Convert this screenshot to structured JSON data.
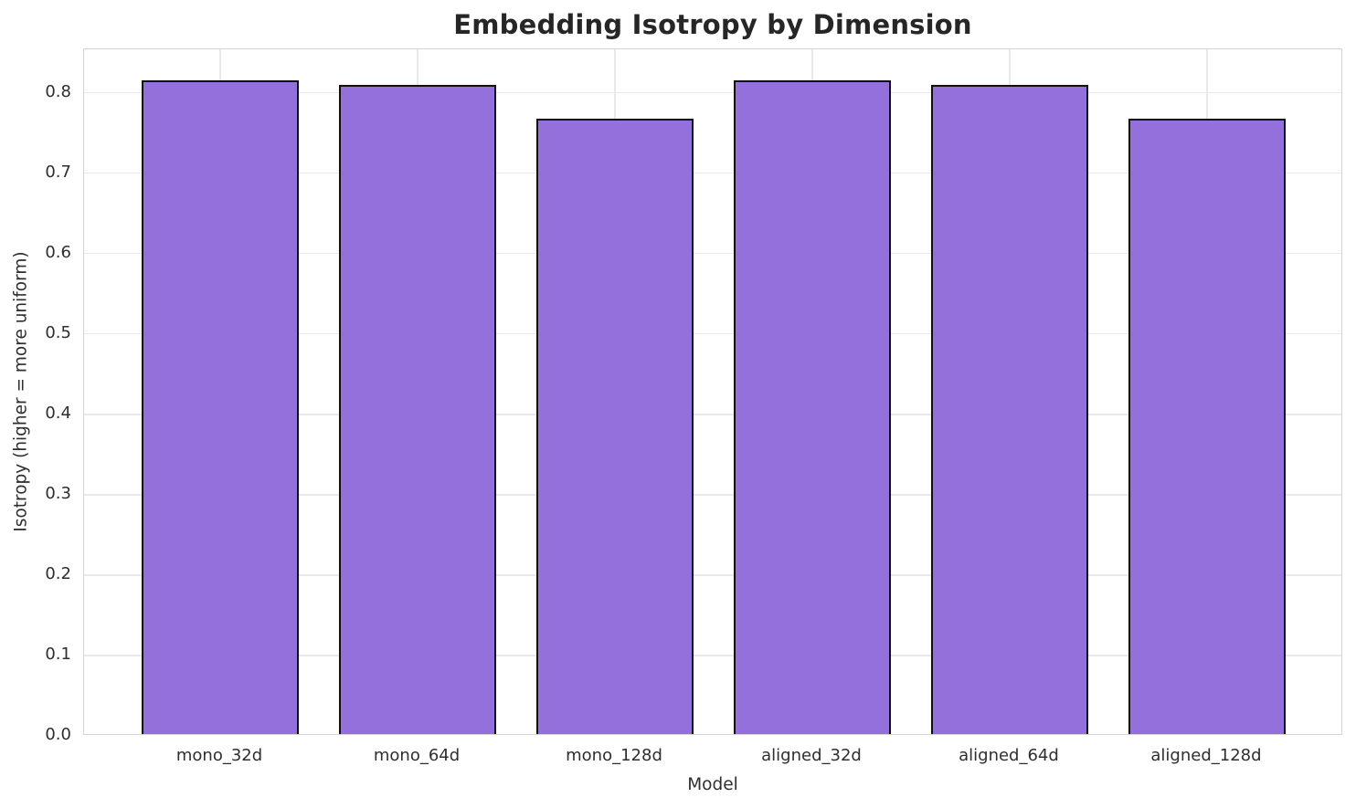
{
  "chart_data": {
    "type": "bar",
    "title": "Embedding Isotropy by Dimension",
    "xlabel": "Model",
    "ylabel": "Isotropy (higher = more uniform)",
    "categories": [
      "mono_32d",
      "mono_64d",
      "mono_128d",
      "aligned_32d",
      "aligned_64d",
      "aligned_128d"
    ],
    "values": [
      0.813,
      0.808,
      0.766,
      0.813,
      0.808,
      0.766
    ],
    "ylim": [
      0,
      0.854
    ],
    "yticks": [
      0.0,
      0.1,
      0.2,
      0.3,
      0.4,
      0.5,
      0.6,
      0.7,
      0.8
    ],
    "ytick_decimals": 1,
    "grid": true,
    "legend": null,
    "bar_color": "#9370DB",
    "bar_edge_color": "#0f0f0f",
    "grid_color": "#e9e9e9",
    "spine_color": "#d4d4d4",
    "text_color": "#2e2e2e",
    "title_color": "#262626",
    "background_color": "#ffffff"
  }
}
